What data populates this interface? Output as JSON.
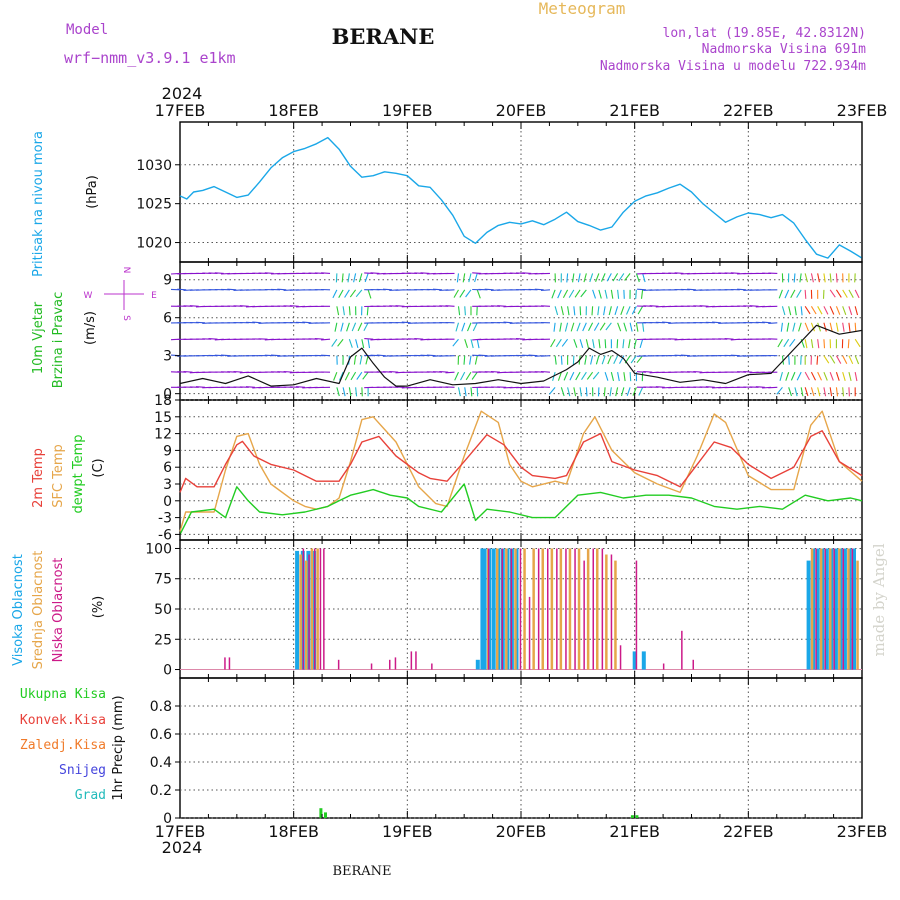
{
  "header": {
    "model_label": "Model",
    "model_name": "wrf−nmm_v3.9.1 e1km",
    "station": "BERANE",
    "product": "Meteogram",
    "coords": "lon,lat (19.85E, 42.8312N)",
    "altitude": "Nadmorska Visina 691m",
    "model_altitude": "Nadmorska Visina u modelu 722.934m",
    "year_top": "2024",
    "year_bottom": "2024",
    "footer_station": "BERANE",
    "watermark": "made by Angel"
  },
  "colors": {
    "pressure": "#1aa7e8",
    "wind_axis_label": "#22bb22",
    "wind_axis_label2": "#22bb22",
    "compass": "#bb33cc",
    "t2m": "#e8413a",
    "tsfc": "#e6a64a",
    "dewpoint": "#22cc22",
    "cloud_high": "#1aa7e8",
    "cloud_mid": "#e6a64a",
    "cloud_low": "#cc1a88",
    "precip_total": "#22cc22",
    "precip_conv": "#e8413a",
    "precip_frozen": "#f07b2a",
    "snow": "#4444dd",
    "hail": "#22bbbb",
    "header_purple": "#aa44cc",
    "header_gold": "#e6b85a"
  },
  "chart_data": [
    {
      "type": "line",
      "panel": "pressure",
      "ylabel": "Pritisak na nivou mora",
      "unit": "(hPa)",
      "xticks": [
        "17FEB",
        "18FEB",
        "19FEB",
        "20FEB",
        "21FEB",
        "22FEB",
        "23FEB"
      ],
      "ylim": [
        1017.5,
        1035.5
      ],
      "yticks": [
        1020,
        1025,
        1030
      ],
      "grid": true,
      "series": [
        {
          "x": [
            0,
            0.06,
            0.12,
            0.2,
            0.3,
            0.4,
            0.5,
            0.6,
            0.7,
            0.8,
            0.9,
            1.0,
            1.1,
            1.2,
            1.3,
            1.4,
            1.5,
            1.6,
            1.7,
            1.8,
            1.9,
            2.0,
            2.1,
            2.2,
            2.3,
            2.4,
            2.5,
            2.6,
            2.7,
            2.8,
            2.9,
            3.0,
            3.1,
            3.2,
            3.3,
            3.4,
            3.5,
            3.6,
            3.7,
            3.8,
            3.9,
            4.0,
            4.1,
            4.2,
            4.3,
            4.4,
            4.5,
            4.6,
            4.7,
            4.8,
            4.9,
            5.0,
            5.1,
            5.2,
            5.3,
            5.4,
            5.5,
            5.6,
            5.7,
            5.8,
            5.9,
            6.0
          ],
          "values": [
            1026.0,
            1025.6,
            1026.5,
            1026.7,
            1027.2,
            1026.5,
            1025.8,
            1026.1,
            1027.8,
            1029.6,
            1030.9,
            1031.7,
            1032.1,
            1032.7,
            1033.5,
            1032.0,
            1029.8,
            1028.4,
            1028.6,
            1029.1,
            1028.9,
            1028.6,
            1027.3,
            1027.1,
            1025.5,
            1023.5,
            1020.8,
            1019.9,
            1021.3,
            1022.2,
            1022.6,
            1022.4,
            1022.8,
            1022.3,
            1023.0,
            1023.9,
            1022.7,
            1022.2,
            1021.6,
            1022.0,
            1023.9,
            1025.3,
            1026.0,
            1026.4,
            1027.0,
            1027.5,
            1026.5,
            1025.0,
            1023.8,
            1022.6,
            1023.3,
            1023.8,
            1023.6,
            1023.2,
            1023.6,
            1022.5,
            1020.4,
            1018.5,
            1018.0,
            1019.7,
            1018.9,
            1018.0
          ]
        }
      ]
    },
    {
      "type": "line",
      "panel": "wind",
      "ylabel": "10m Vjetar",
      "ylabel2": "Brzina i Pravac",
      "unit": "(m/s)",
      "compass": [
        "N",
        "W",
        "E",
        "S"
      ],
      "ylim": [
        -0.5,
        10.4
      ],
      "yticks": [
        0,
        3,
        6,
        9
      ],
      "grid": true,
      "series": [
        {
          "name": "speed",
          "x": [
            0,
            0.2,
            0.4,
            0.6,
            0.8,
            1.0,
            1.2,
            1.4,
            1.5,
            1.6,
            1.7,
            1.8,
            1.9,
            2.0,
            2.2,
            2.4,
            2.6,
            2.8,
            3.0,
            3.2,
            3.4,
            3.5,
            3.6,
            3.7,
            3.8,
            3.9,
            4.0,
            4.2,
            4.4,
            4.6,
            4.8,
            5.0,
            5.2,
            5.4,
            5.6,
            5.8,
            6.0
          ],
          "values": [
            0.8,
            1.2,
            0.8,
            1.4,
            0.6,
            0.7,
            1.2,
            0.8,
            2.9,
            3.6,
            2.4,
            1.3,
            0.6,
            0.6,
            1.1,
            0.7,
            0.8,
            1.1,
            0.8,
            1.0,
            1.9,
            2.5,
            3.6,
            3.1,
            3.4,
            2.8,
            1.6,
            1.3,
            0.9,
            1.1,
            0.8,
            1.5,
            1.6,
            3.5,
            5.4,
            4.7,
            5.0
          ]
        }
      ]
    },
    {
      "type": "line",
      "panel": "temperature",
      "ylabel": [
        "2m Temp",
        "SFC Temp",
        "dewpt Temp"
      ],
      "unit": "(C)",
      "ylim": [
        -7,
        18
      ],
      "yticks": [
        -6,
        -3,
        0,
        3,
        6,
        9,
        12,
        15,
        18
      ],
      "grid": true,
      "series": [
        {
          "name": "2m Temp",
          "x": [
            0,
            0.05,
            0.15,
            0.3,
            0.4,
            0.5,
            0.55,
            0.65,
            0.8,
            1.0,
            1.1,
            1.2,
            1.4,
            1.5,
            1.6,
            1.75,
            1.9,
            2.1,
            2.2,
            2.35,
            2.5,
            2.7,
            2.85,
            3.0,
            3.1,
            3.3,
            3.4,
            3.55,
            3.7,
            3.8,
            4.0,
            4.2,
            4.4,
            4.55,
            4.7,
            4.85,
            5.0,
            5.2,
            5.4,
            5.55,
            5.65,
            5.8,
            6.0
          ],
          "values": [
            1.5,
            4.0,
            2.5,
            2.5,
            6.5,
            10.0,
            10.6,
            8.0,
            6.5,
            5.5,
            4.5,
            3.5,
            3.5,
            6.5,
            10.5,
            11.5,
            8.0,
            5.0,
            4.0,
            3.5,
            7.0,
            11.8,
            10.0,
            6.0,
            4.5,
            4.0,
            4.5,
            10.5,
            12.0,
            7.0,
            5.5,
            4.5,
            2.5,
            6.5,
            10.5,
            9.5,
            6.5,
            4.0,
            6.0,
            11.5,
            12.5,
            7.0,
            4.5
          ]
        },
        {
          "name": "SFC Temp",
          "x": [
            0,
            0.05,
            0.15,
            0.3,
            0.4,
            0.5,
            0.6,
            0.7,
            0.8,
            1.0,
            1.1,
            1.2,
            1.3,
            1.4,
            1.5,
            1.6,
            1.7,
            1.9,
            2.1,
            2.2,
            2.25,
            2.35,
            2.5,
            2.65,
            2.8,
            2.9,
            3.0,
            3.1,
            3.3,
            3.4,
            3.55,
            3.65,
            3.8,
            4.0,
            4.2,
            4.4,
            4.55,
            4.7,
            4.8,
            5.0,
            5.2,
            5.4,
            5.55,
            5.65,
            5.8,
            6.0
          ],
          "values": [
            -5.5,
            -2.0,
            -2.0,
            -2.0,
            5.5,
            11.5,
            12.0,
            6.5,
            3.0,
            0.0,
            -1.0,
            -1.5,
            -1.0,
            0.5,
            7.0,
            14.5,
            15.0,
            10.5,
            2.5,
            0.5,
            -0.5,
            -1.0,
            8.0,
            16.0,
            14.0,
            6.5,
            3.5,
            2.5,
            3.5,
            3.0,
            12.0,
            15.0,
            9.0,
            5.0,
            3.0,
            1.5,
            8.0,
            15.5,
            14.0,
            4.5,
            2.0,
            2.0,
            13.5,
            16.0,
            7.0,
            3.5
          ]
        },
        {
          "name": "dewpt Temp",
          "x": [
            0,
            0.1,
            0.3,
            0.4,
            0.5,
            0.6,
            0.7,
            0.9,
            1.1,
            1.3,
            1.4,
            1.5,
            1.6,
            1.7,
            1.85,
            2.0,
            2.1,
            2.3,
            2.5,
            2.6,
            2.7,
            2.9,
            3.1,
            3.3,
            3.5,
            3.7,
            3.9,
            4.1,
            4.3,
            4.5,
            4.7,
            4.9,
            5.1,
            5.3,
            5.5,
            5.7,
            5.9,
            6.0
          ],
          "values": [
            -6.0,
            -2.0,
            -1.5,
            -3.0,
            2.5,
            0.0,
            -2.0,
            -2.5,
            -2.0,
            -1.0,
            0.0,
            1.0,
            1.5,
            2.0,
            1.0,
            0.5,
            -1.0,
            -2.0,
            3.0,
            -3.5,
            -1.5,
            -2.0,
            -3.0,
            -3.0,
            1.0,
            1.5,
            0.5,
            1.0,
            1.0,
            0.5,
            -1.0,
            -1.5,
            -1.0,
            -1.5,
            1.0,
            0.0,
            0.5,
            0.0
          ]
        }
      ]
    },
    {
      "type": "bar",
      "panel": "clouds",
      "ylabel": [
        "Visoka Oblacnost",
        "Srednja Oblacnost",
        "Niska Oblacnost"
      ],
      "unit": "(%)",
      "ylim": [
        -7,
        107
      ],
      "yticks": [
        0,
        25,
        50,
        75,
        100
      ],
      "grid": true,
      "series": [
        {
          "name": "Visoka Oblacnost",
          "x": [
            1.03,
            1.08,
            1.13,
            1.18,
            2.62,
            2.66,
            2.68,
            2.72,
            2.76,
            2.8,
            2.84,
            2.88,
            2.92,
            2.96,
            4.0,
            4.08,
            5.53,
            5.57,
            5.61,
            5.65,
            5.69,
            5.73,
            5.77,
            5.81,
            5.85,
            5.89,
            5.93
          ],
          "values": [
            98,
            98,
            98,
            98,
            8,
            100,
            100,
            100,
            100,
            100,
            100,
            100,
            100,
            100,
            15,
            15,
            90,
            100,
            100,
            100,
            100,
            100,
            100,
            100,
            100,
            100,
            100
          ]
        },
        {
          "name": "Srednja Oblacnost",
          "x": [
            1.05,
            1.1,
            1.15,
            1.2,
            2.7,
            2.78,
            2.86,
            2.94,
            3.02,
            3.1,
            3.18,
            3.26,
            3.34,
            3.42,
            3.5,
            3.58,
            3.66,
            3.74,
            3.82,
            5.55,
            5.63,
            5.71,
            5.79,
            5.87,
            5.95
          ],
          "values": [
            95,
            90,
            100,
            100,
            100,
            100,
            100,
            100,
            100,
            100,
            100,
            100,
            100,
            100,
            100,
            100,
            100,
            95,
            90,
            100,
            100,
            100,
            100,
            100,
            90
          ]
        },
        {
          "name": "Niska Oblacnost",
          "x": [
            0.38,
            0.42,
            1.07,
            1.12,
            1.17,
            1.22,
            1.25,
            1.38,
            1.67,
            1.83,
            1.88,
            2.02,
            2.06,
            2.2,
            2.7,
            2.82,
            2.9,
            2.98,
            3.06,
            3.14,
            3.22,
            3.3,
            3.38,
            3.46,
            3.54,
            3.62,
            3.7,
            3.78,
            3.86,
            4.0,
            4.24,
            4.4,
            4.5,
            5.58,
            5.66,
            5.74,
            5.82,
            5.9
          ],
          "values": [
            10,
            10,
            100,
            95,
            100,
            100,
            100,
            8,
            5,
            8,
            10,
            15,
            15,
            5,
            100,
            100,
            100,
            100,
            60,
            100,
            100,
            100,
            100,
            100,
            90,
            100,
            100,
            95,
            20,
            90,
            5,
            32,
            8,
            100,
            100,
            100,
            100,
            100
          ]
        }
      ]
    },
    {
      "type": "bar",
      "panel": "precip",
      "ylabel": "1hr Precip (mm)",
      "legend": [
        "Ukupna Kisa",
        "Konvek.Kisa",
        "Zaledj.Kisa",
        "Snijeg",
        "Grad"
      ],
      "ylim": [
        0,
        1.0
      ],
      "yticks": [
        0,
        0.2,
        0.4,
        0.6,
        0.8
      ],
      "grid": true,
      "xticks": [
        "17FEB",
        "18FEB",
        "19FEB",
        "20FEB",
        "21FEB",
        "22FEB",
        "23FEB"
      ],
      "series": [
        {
          "name": "Ukupna Kisa",
          "x": [
            1.24,
            1.28,
            3.98,
            4.02
          ],
          "values": [
            0.07,
            0.04,
            0.02,
            0.02
          ]
        }
      ]
    }
  ]
}
